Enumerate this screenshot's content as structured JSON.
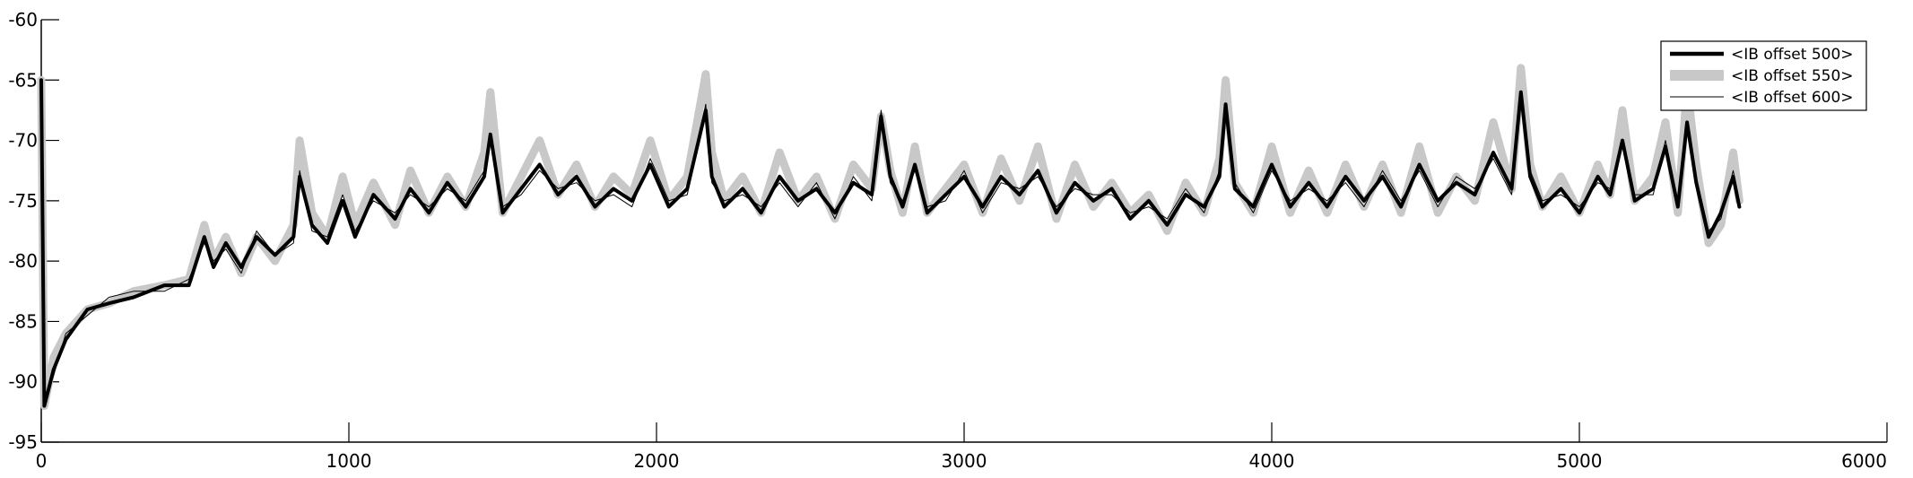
{
  "chart_data": {
    "type": "line",
    "xlim": [
      0,
      6000
    ],
    "ylim": [
      -95,
      -60
    ],
    "xticks": [
      0,
      1000,
      2000,
      3000,
      4000,
      5000,
      6000
    ],
    "yticks": [
      -60,
      -65,
      -70,
      -75,
      -80,
      -85,
      -90,
      -95
    ],
    "xtick_labels": [
      "0",
      "1000",
      "2000",
      "3000",
      "4000",
      "5000",
      "6000"
    ],
    "ytick_labels": [
      "-60",
      "-65",
      "-70",
      "-75",
      "-80",
      "-85",
      "-90",
      "-95"
    ],
    "grid": false,
    "legend_position": "top-right",
    "series": [
      {
        "name": "<IB offset 550>",
        "color": "#c8c8c8",
        "style": "thick-light",
        "x": [
          0,
          10,
          40,
          80,
          150,
          220,
          300,
          400,
          480,
          530,
          560,
          600,
          650,
          700,
          760,
          820,
          840,
          880,
          930,
          980,
          1020,
          1080,
          1150,
          1200,
          1260,
          1320,
          1380,
          1440,
          1460,
          1500,
          1560,
          1620,
          1680,
          1740,
          1800,
          1860,
          1920,
          1980,
          2040,
          2100,
          2160,
          2180,
          2220,
          2280,
          2340,
          2400,
          2460,
          2520,
          2580,
          2640,
          2700,
          2730,
          2760,
          2800,
          2840,
          2880,
          2940,
          3000,
          3060,
          3120,
          3180,
          3240,
          3300,
          3360,
          3420,
          3480,
          3540,
          3600,
          3660,
          3720,
          3780,
          3830,
          3850,
          3880,
          3940,
          4000,
          4060,
          4120,
          4180,
          4240,
          4300,
          4360,
          4420,
          4480,
          4540,
          4600,
          4660,
          4720,
          4780,
          4810,
          4840,
          4880,
          4940,
          5000,
          5060,
          5100,
          5140,
          5180,
          5240,
          5280,
          5320,
          5350,
          5380,
          5420,
          5460,
          5500,
          5520
        ],
        "y": [
          -65,
          -92,
          -88,
          -86,
          -84,
          -83.5,
          -82.5,
          -82,
          -81.5,
          -77,
          -80,
          -78,
          -81,
          -78,
          -80,
          -77,
          -70,
          -76,
          -78,
          -73,
          -77,
          -73.5,
          -77,
          -72.5,
          -76,
          -73,
          -75.5,
          -71,
          -66,
          -76,
          -73,
          -70,
          -74.5,
          -72,
          -75.5,
          -73,
          -74.5,
          -70,
          -75,
          -73,
          -64.5,
          -71,
          -75,
          -73,
          -76,
          -71,
          -75,
          -73,
          -76.5,
          -72,
          -74,
          -68,
          -72.5,
          -76,
          -70.5,
          -76,
          -74,
          -72,
          -76,
          -71.5,
          -75,
          -70.5,
          -76.5,
          -72,
          -75.5,
          -73.5,
          -76,
          -74.5,
          -77.5,
          -73.5,
          -76,
          -71.5,
          -65,
          -73.5,
          -76,
          -70.5,
          -76,
          -72.5,
          -76,
          -72,
          -75.5,
          -72,
          -76,
          -70.5,
          -76,
          -73,
          -75,
          -68.5,
          -74,
          -64,
          -72,
          -75.5,
          -73,
          -76,
          -72,
          -74.5,
          -67.5,
          -75,
          -73,
          -68.5,
          -76,
          -65.5,
          -72,
          -78.5,
          -77,
          -71,
          -75
        ]
      },
      {
        "name": "<IB offset 500>",
        "color": "#000000",
        "style": "thick-dark",
        "x": [
          0,
          10,
          40,
          80,
          150,
          220,
          300,
          400,
          480,
          530,
          560,
          600,
          650,
          700,
          760,
          820,
          840,
          880,
          930,
          980,
          1020,
          1080,
          1150,
          1200,
          1260,
          1320,
          1380,
          1440,
          1460,
          1500,
          1560,
          1620,
          1680,
          1740,
          1800,
          1860,
          1920,
          1980,
          2040,
          2100,
          2160,
          2180,
          2220,
          2280,
          2340,
          2400,
          2460,
          2520,
          2580,
          2640,
          2700,
          2730,
          2760,
          2800,
          2840,
          2880,
          2940,
          3000,
          3060,
          3120,
          3180,
          3240,
          3300,
          3360,
          3420,
          3480,
          3540,
          3600,
          3660,
          3720,
          3780,
          3830,
          3850,
          3880,
          3940,
          4000,
          4060,
          4120,
          4180,
          4240,
          4300,
          4360,
          4420,
          4480,
          4540,
          4600,
          4660,
          4720,
          4780,
          4810,
          4840,
          4880,
          4940,
          5000,
          5060,
          5100,
          5140,
          5180,
          5240,
          5280,
          5320,
          5350,
          5380,
          5420,
          5460,
          5500,
          5520
        ],
        "y": [
          -65,
          -92,
          -89,
          -86.5,
          -84,
          -83.5,
          -83,
          -82,
          -82,
          -78,
          -80.5,
          -78.5,
          -80.5,
          -78,
          -79.5,
          -78,
          -73,
          -77,
          -78.5,
          -75,
          -78,
          -74.5,
          -76.5,
          -74,
          -76,
          -73.5,
          -75.5,
          -73,
          -69.5,
          -76,
          -74,
          -72,
          -74.5,
          -73,
          -75.5,
          -74,
          -75,
          -72,
          -75.5,
          -74,
          -67.5,
          -73,
          -75.5,
          -74,
          -76,
          -73,
          -75,
          -74,
          -76,
          -73.5,
          -74.5,
          -68,
          -73,
          -75.5,
          -72,
          -76,
          -74.5,
          -73,
          -75.5,
          -73,
          -74.5,
          -72.5,
          -76,
          -73.5,
          -75,
          -74,
          -76.5,
          -75,
          -77,
          -74.5,
          -75.5,
          -73,
          -67,
          -74,
          -75.5,
          -72,
          -75.5,
          -73.5,
          -75.5,
          -73,
          -75,
          -73,
          -75.5,
          -72,
          -75,
          -73.5,
          -74.5,
          -71,
          -74,
          -66,
          -73,
          -75.5,
          -74,
          -76,
          -73,
          -74.5,
          -70,
          -75,
          -74,
          -70.5,
          -75.5,
          -68.5,
          -73.5,
          -78,
          -76,
          -73,
          -75.5
        ]
      },
      {
        "name": "<IB offset 600>",
        "color": "#000000",
        "style": "thin",
        "x": [
          0,
          10,
          40,
          80,
          150,
          220,
          300,
          400,
          480,
          530,
          560,
          600,
          650,
          700,
          760,
          820,
          840,
          880,
          930,
          980,
          1020,
          1080,
          1150,
          1200,
          1260,
          1320,
          1380,
          1440,
          1460,
          1500,
          1560,
          1620,
          1680,
          1740,
          1800,
          1860,
          1920,
          1980,
          2040,
          2100,
          2160,
          2180,
          2220,
          2280,
          2340,
          2400,
          2460,
          2520,
          2580,
          2640,
          2700,
          2730,
          2760,
          2800,
          2840,
          2880,
          2940,
          3000,
          3060,
          3120,
          3180,
          3240,
          3300,
          3360,
          3420,
          3480,
          3540,
          3600,
          3660,
          3720,
          3780,
          3830,
          3850,
          3880,
          3940,
          4000,
          4060,
          4120,
          4180,
          4240,
          4300,
          4360,
          4420,
          4480,
          4540,
          4600,
          4660,
          4720,
          4780,
          4810,
          4840,
          4880,
          4940,
          5000,
          5060,
          5100,
          5140,
          5180,
          5240,
          5280,
          5320,
          5350,
          5380,
          5420,
          5460,
          5500,
          5520
        ],
        "y": [
          -65,
          -91.5,
          -89.5,
          -86,
          -84.5,
          -83,
          -82.5,
          -82.5,
          -81.5,
          -78.5,
          -80,
          -79,
          -81,
          -77.5,
          -79.5,
          -78.5,
          -72.5,
          -77.5,
          -78,
          -74.5,
          -77.5,
          -75,
          -76,
          -74.5,
          -75.5,
          -74,
          -75,
          -72.5,
          -70,
          -75.5,
          -74.5,
          -72.5,
          -74,
          -73.5,
          -75,
          -74.5,
          -75.5,
          -71.5,
          -75,
          -74.5,
          -67,
          -73.5,
          -75,
          -74.5,
          -75.5,
          -73.5,
          -75.5,
          -73.5,
          -76.5,
          -73,
          -75,
          -67.5,
          -73.5,
          -75,
          -72.5,
          -75.5,
          -75,
          -72.5,
          -76,
          -73.5,
          -74,
          -73,
          -75.5,
          -74,
          -74.5,
          -74.5,
          -76,
          -75.5,
          -76.5,
          -74,
          -76,
          -72.5,
          -67.5,
          -73.5,
          -76,
          -72.5,
          -75,
          -74,
          -75,
          -73.5,
          -75.5,
          -72.5,
          -75,
          -72.5,
          -75.5,
          -73,
          -74,
          -71.5,
          -74.5,
          -66.5,
          -72.5,
          -75,
          -74.5,
          -75.5,
          -73.5,
          -74,
          -70.5,
          -74.5,
          -74.5,
          -70,
          -75,
          -69,
          -73,
          -77.5,
          -76.5,
          -72.5,
          -75
        ]
      }
    ]
  }
}
